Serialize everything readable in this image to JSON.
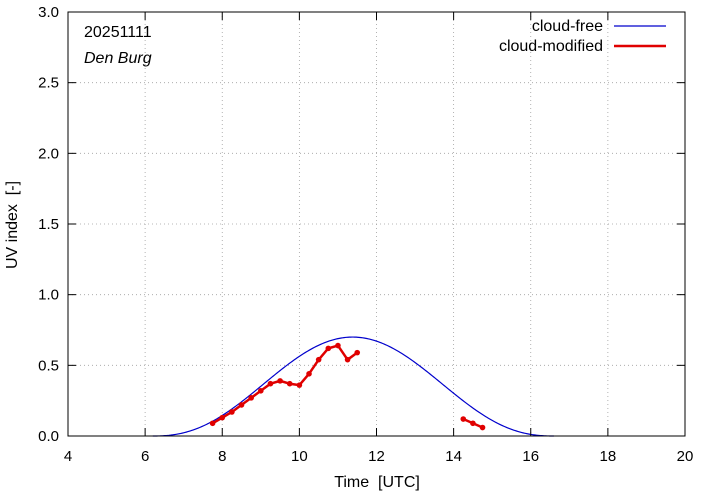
{
  "chart_data": {
    "type": "line",
    "date_label": "20251111",
    "station_label": "Den Burg",
    "xlabel": "Time  [UTC]",
    "ylabel": "UV index  [-]",
    "xlim": [
      4,
      20
    ],
    "ylim": [
      0,
      3.0
    ],
    "x_ticks": [
      4,
      6,
      8,
      10,
      12,
      14,
      16,
      18,
      20
    ],
    "y_ticks": [
      0.0,
      0.5,
      1.0,
      1.5,
      2.0,
      2.5,
      3.0
    ],
    "y_tick_labels": [
      "0.0",
      "0.5",
      "1.0",
      "1.5",
      "2.0",
      "2.5",
      "3.0"
    ],
    "grid": true,
    "legend_position": "top-right",
    "series": [
      {
        "name": "cloud-free",
        "color": "#0000cc",
        "style": "line",
        "peak_x": 11.38,
        "peak_y": 0.7,
        "start_x": 6.2,
        "end_x": 16.6
      },
      {
        "name": "cloud-modified",
        "color": "#e00000",
        "style": "line-points",
        "segments": [
          {
            "x": [
              7.75,
              8.0,
              8.25,
              8.5,
              8.75,
              9.0,
              9.25,
              9.5,
              9.75,
              10.0,
              10.25,
              10.5,
              10.75,
              11.0,
              11.25,
              11.5
            ],
            "y": [
              0.09,
              0.13,
              0.17,
              0.22,
              0.27,
              0.32,
              0.37,
              0.39,
              0.37,
              0.36,
              0.44,
              0.54,
              0.62,
              0.64,
              0.54,
              0.59
            ]
          },
          {
            "x": [
              14.25,
              14.5,
              14.75
            ],
            "y": [
              0.12,
              0.09,
              0.06
            ]
          }
        ]
      }
    ]
  }
}
